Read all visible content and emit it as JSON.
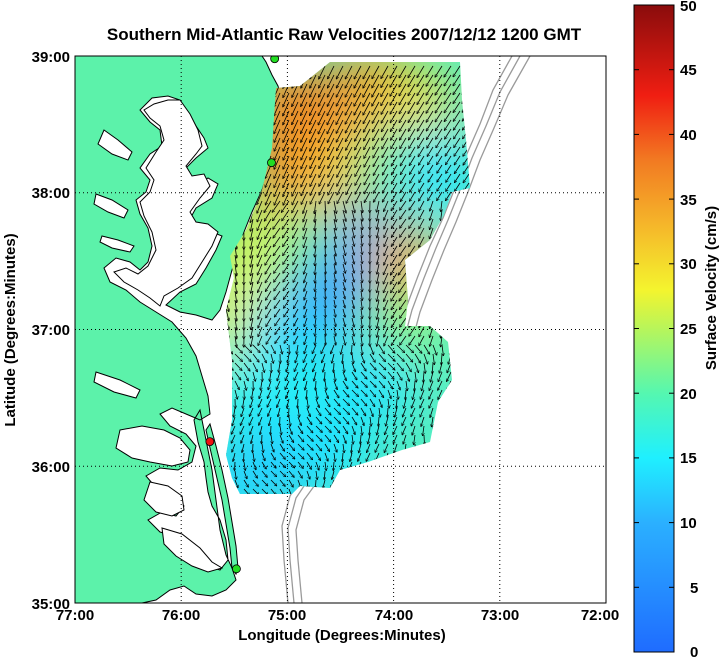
{
  "title": "Southern Mid-Atlantic Raw Velocities 2007/12/12 1200 GMT",
  "colors": {
    "title": "#1010e0",
    "land": "#5cf2aa",
    "sea": "#ffffff",
    "coastline": "#000000",
    "bathymetry": "#9a9a9a",
    "station_green": "#22dd22",
    "station_red": "#ee1111"
  },
  "chart_data": {
    "type": "heatmap",
    "title": "Southern Mid-Atlantic Raw Velocities 2007/12/12 1200 GMT",
    "xlabel": "Longitude (Degrees:Minutes)",
    "ylabel": "Latitude (Degrees:Minutes)",
    "xlim": [
      -77,
      -72
    ],
    "ylim": [
      35,
      39
    ],
    "x_ticks": [
      "77:00",
      "76:00",
      "75:00",
      "74:00",
      "73:00",
      "72:00"
    ],
    "y_ticks": [
      "39:00",
      "38:00",
      "37:00",
      "36:00",
      "35:00"
    ],
    "grid": true,
    "colorbar": {
      "label": "Surface Velocity (cm/s)",
      "range": [
        0,
        50
      ],
      "ticks": [
        "50",
        "45",
        "40",
        "35",
        "30",
        "25",
        "20",
        "15",
        "10",
        "5",
        "0"
      ]
    },
    "stations": [
      {
        "color": "green",
        "lon": -75.12,
        "lat": 38.98
      },
      {
        "color": "green",
        "lon": -75.15,
        "lat": 38.22
      },
      {
        "color": "red",
        "lon": -75.73,
        "lat": 36.18
      },
      {
        "color": "green",
        "lon": -75.48,
        "lat": 35.25
      }
    ],
    "speed_field": [
      {
        "lon": -75.05,
        "lat": 38.65,
        "speed": 36
      },
      {
        "lon": -74.6,
        "lat": 38.55,
        "speed": 38
      },
      {
        "lon": -74.2,
        "lat": 38.75,
        "speed": 36
      },
      {
        "lon": -73.8,
        "lat": 38.6,
        "speed": 30
      },
      {
        "lon": -75.0,
        "lat": 38.1,
        "speed": 37
      },
      {
        "lon": -74.5,
        "lat": 38.15,
        "speed": 32
      },
      {
        "lon": -74.0,
        "lat": 38.2,
        "speed": 22
      },
      {
        "lon": -73.6,
        "lat": 38.15,
        "speed": 14
      },
      {
        "lon": -75.3,
        "lat": 37.6,
        "speed": 27
      },
      {
        "lon": -74.8,
        "lat": 37.6,
        "speed": 22
      },
      {
        "lon": -74.25,
        "lat": 37.6,
        "speed": 9
      },
      {
        "lon": -73.9,
        "lat": 37.45,
        "speed": 34
      },
      {
        "lon": -75.45,
        "lat": 37.1,
        "speed": 28
      },
      {
        "lon": -75.0,
        "lat": 37.0,
        "speed": 13
      },
      {
        "lon": -74.55,
        "lat": 37.25,
        "speed": 8
      },
      {
        "lon": -73.95,
        "lat": 37.0,
        "speed": 23
      },
      {
        "lon": -75.2,
        "lat": 36.5,
        "speed": 15
      },
      {
        "lon": -74.7,
        "lat": 36.55,
        "speed": 16
      },
      {
        "lon": -74.2,
        "lat": 36.6,
        "speed": 14
      },
      {
        "lon": -75.1,
        "lat": 36.0,
        "speed": 11
      },
      {
        "lon": -74.6,
        "lat": 36.1,
        "speed": 14
      },
      {
        "lon": -75.5,
        "lat": 35.9,
        "speed": 13
      }
    ]
  }
}
